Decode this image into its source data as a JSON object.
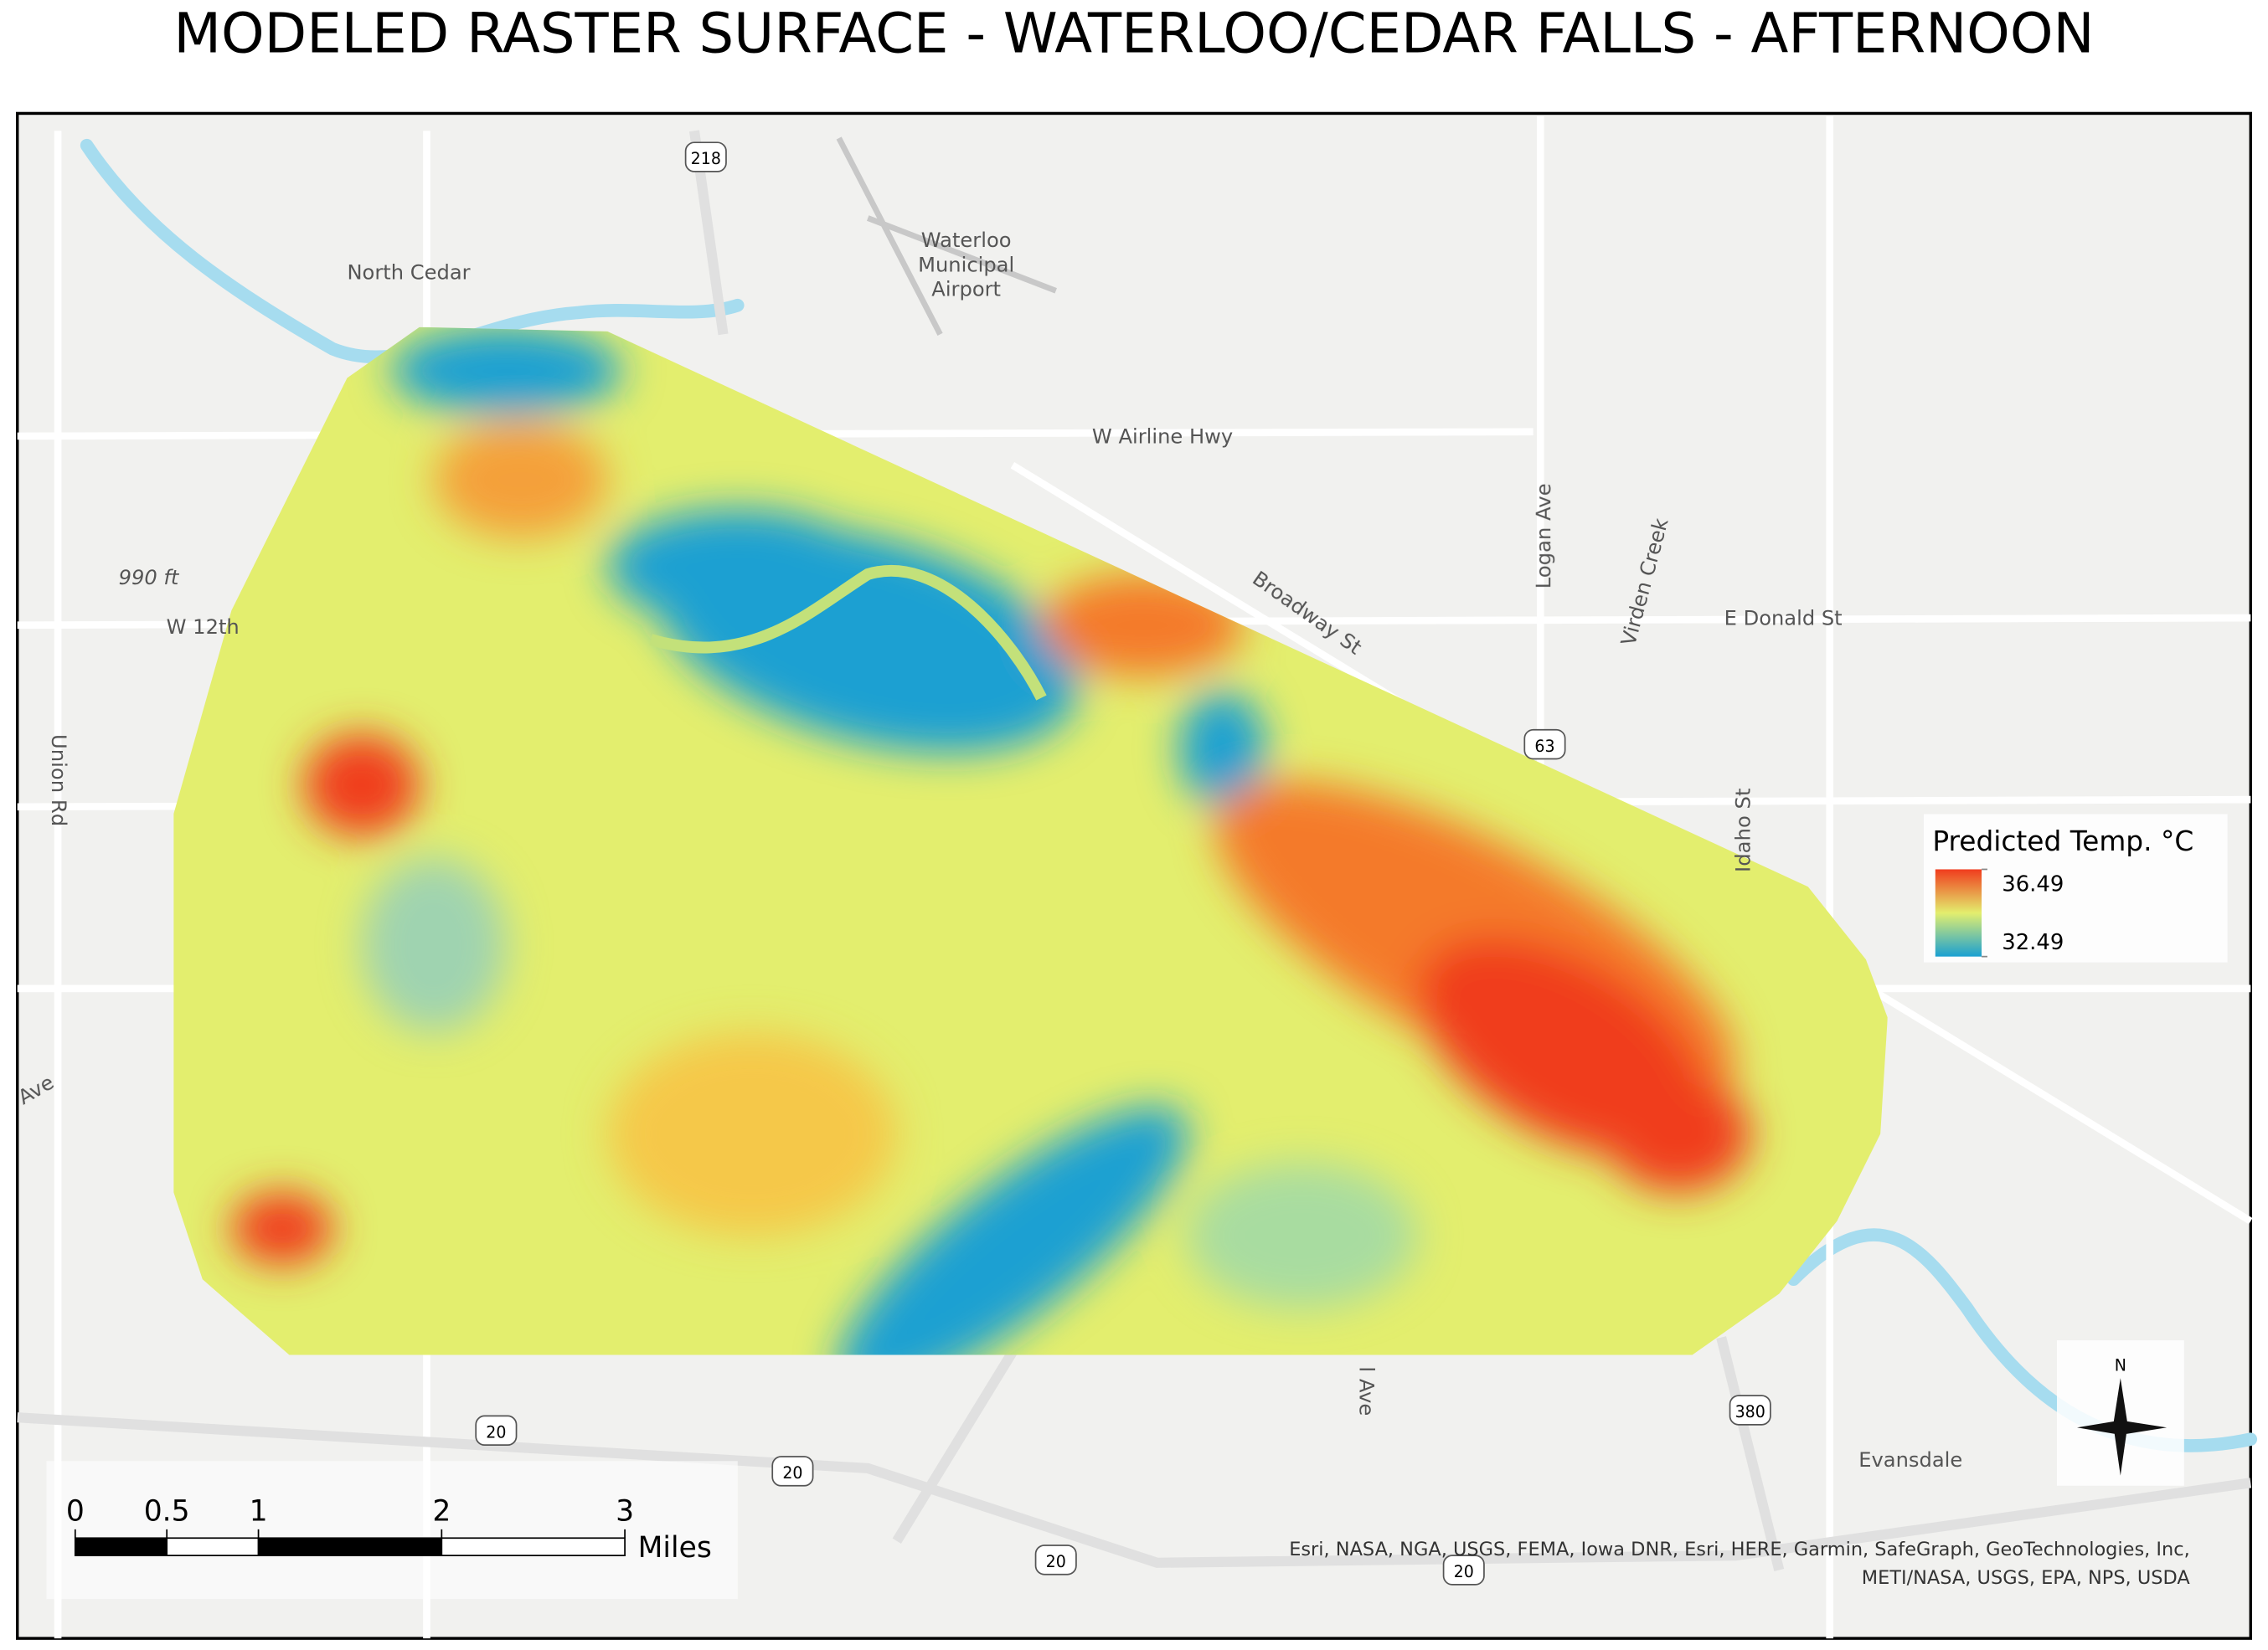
{
  "header": {
    "title": "MODELED RASTER SURFACE - WATERLOO/CEDAR FALLS - AFTERNOON"
  },
  "map": {
    "places": {
      "north_cedar": "North Cedar",
      "airport": "Waterloo\nMunicipal\nAirport",
      "evansdale": "Evansdale"
    },
    "roads": {
      "airline": "W Airline Hwy",
      "logan": "Logan Ave",
      "broadway": "Broadway St",
      "donald": "E Donald St",
      "w12th": "W 12th",
      "union": "Union Rd",
      "idaho": "Idaho St",
      "virden": "Virden Creek",
      "ave1": "Ave",
      "ave2": "l Ave"
    },
    "elevation": "990 ft",
    "shields": [
      "218",
      "63",
      "380",
      "20",
      "20",
      "20",
      "20"
    ],
    "attribution": "Esri, NASA, NGA, USGS, FEMA, Iowa DNR, Esri, HERE, Garmin, SafeGraph, GeoTechnologies, Inc,\nMETI/NASA, USGS, EPA, NPS, USDA",
    "north": "N"
  },
  "legend": {
    "title": "Predicted Temp. °C",
    "high": 36.49,
    "low": 32.49,
    "high_color": "#f03c1e",
    "mid_color": "#e3ee6e",
    "low_color": "#1aa0d2"
  },
  "scale_bar": {
    "ticks": [
      0,
      0.5,
      1,
      2,
      3
    ],
    "unit": "Miles"
  }
}
